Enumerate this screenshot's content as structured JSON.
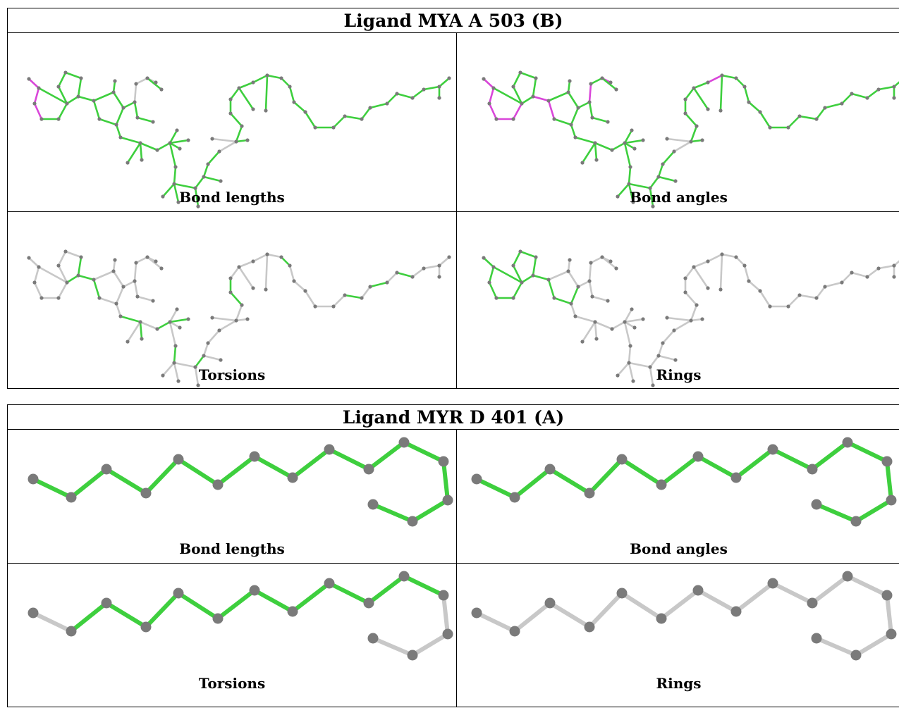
{
  "ligands": [
    {
      "title": "Ligand MYA A 503 (B)",
      "panels": [
        "Bond lengths",
        "Bond angles",
        "Torsions",
        "Rings"
      ]
    },
    {
      "title": "Ligand MYR D 401 (A)",
      "panels": [
        "Bond lengths",
        "Bond angles",
        "Torsions",
        "Rings"
      ]
    }
  ],
  "colors": {
    "outlier": "#d946d9",
    "ok": "#3ecf3e",
    "not_assessed": "#c8c8c8",
    "atom": "#7a7a7a"
  }
}
